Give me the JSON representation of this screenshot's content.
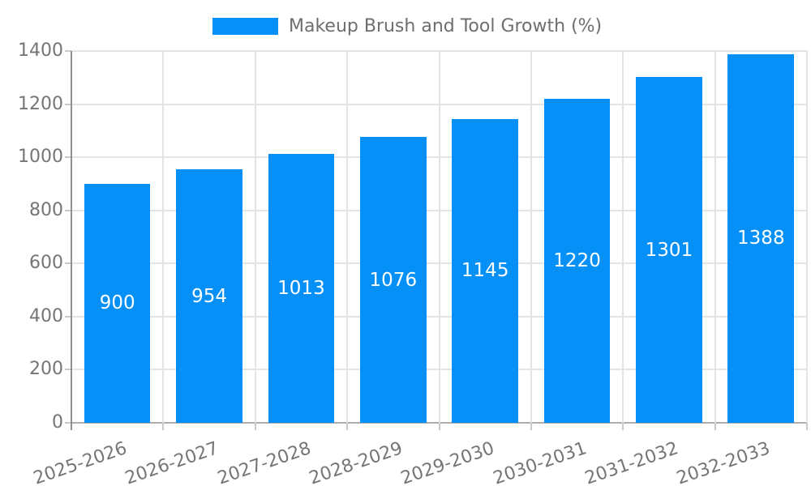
{
  "legend": {
    "label": "Makeup Brush and Tool Growth (%)"
  },
  "chart_data": {
    "type": "bar",
    "title": "Makeup Brush and Tool Growth (%)",
    "categories": [
      "2025-2026",
      "2026-2027",
      "2027-2028",
      "2028-2029",
      "2029-2030",
      "2030-2031",
      "2031-2032",
      "2032-2033"
    ],
    "values": [
      900,
      954,
      1013,
      1076,
      1145,
      1220,
      1301,
      1388
    ],
    "xlabel": "",
    "ylabel": "",
    "ylim": [
      0,
      1400
    ],
    "yticks": [
      0,
      200,
      400,
      600,
      800,
      1000,
      1200,
      1400
    ],
    "grid": true,
    "legend_position": "top-center",
    "bar_labels_inside": true,
    "x_label_rotation_deg": -19,
    "colors": {
      "bar": "#0590F7",
      "bar_value_text": "#FFFFFF",
      "axis_text": "#757575",
      "legend_text": "#6E6E6E",
      "gridline": "#E4E4E4",
      "axis_line": "#8F8F8F",
      "baseline": "#ADADAD",
      "tick": "#C9C9C9",
      "background": "#FFFFFF"
    }
  }
}
